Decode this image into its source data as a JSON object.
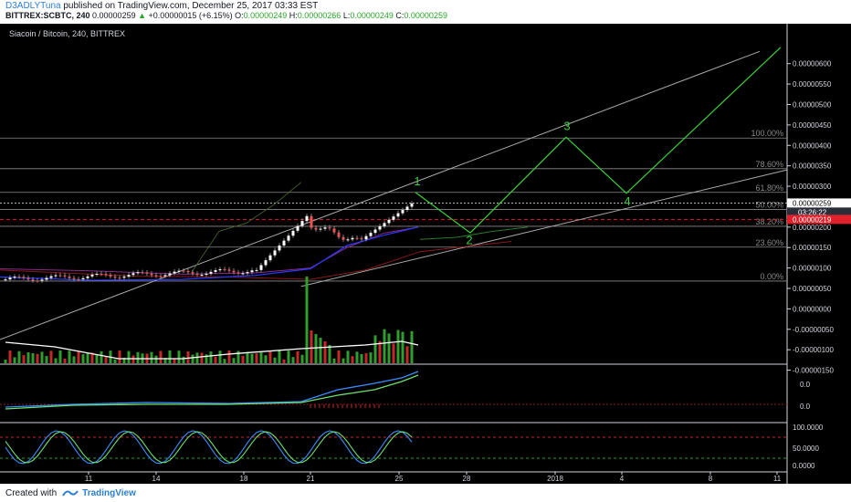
{
  "header": {
    "user": "D3ADLYTuna",
    "published_text": " published on TradingView.com, December 25, 2017 03:33 EST",
    "symbol_line": "BITTREX:SCBTC, 240",
    "last": "0.00000259",
    "change": "+0.00000015 (+6.15%)",
    "o_label": "O:",
    "o_val": "0.00000249",
    "h_label": "H:",
    "h_val": "0.00000266",
    "l_label": "L:",
    "l_val": "0.00000249",
    "c_label": "C:",
    "c_val": "0.00000259"
  },
  "footer": {
    "created_with": "Created with",
    "brand": "TradingView"
  },
  "chart_data": {
    "type": "line",
    "title": "Siacoin / Bitcoin, 240, BITTREX",
    "price_ticks": [
      "0.00000600",
      "0.00000550",
      "0.00000500",
      "0.00000450",
      "0.00000400",
      "0.00000350",
      "0.00000300",
      "0.00000250",
      "0.00000200",
      "0.00000150",
      "0.00000100",
      "0.00000050",
      "0.00000000",
      "-0.00000050",
      "-0.00000100",
      "-0.00000150"
    ],
    "price_tick_values": [
      600,
      550,
      500,
      450,
      400,
      350,
      300,
      250,
      200,
      150,
      100,
      50,
      0,
      -50,
      -100,
      -150
    ],
    "price_range_e8": [
      -175,
      640
    ],
    "last_price_label": "0.00000259",
    "countdown_label": "03:26:22",
    "red_level_label": "0.00000219",
    "last_price_value": 259,
    "red_level_value": 219,
    "fib_levels": [
      {
        "label": "100.00%",
        "value": 418
      },
      {
        "label": "78.60%",
        "value": 343
      },
      {
        "label": "61.80%",
        "value": 285
      },
      {
        "label": "50.00%",
        "value": 243
      },
      {
        "label": "38.20%",
        "value": 202
      },
      {
        "label": "23.60%",
        "value": 151
      },
      {
        "label": "0.00%",
        "value": 68
      }
    ],
    "x_tick_labels": [
      "11",
      "14",
      "18",
      "21",
      "25",
      "28",
      "2018",
      "4",
      "8",
      "11"
    ],
    "wave_labels": [
      {
        "label": "1",
        "value": 285
      },
      {
        "label": "2",
        "value": 190
      },
      {
        "label": "3",
        "value": 420
      },
      {
        "label": "4",
        "value": 285
      }
    ],
    "macd_ticks": [
      "0.0",
      "0.0"
    ],
    "stoch_ticks": [
      "100.0000",
      "50.0000",
      "0.0000"
    ],
    "colors": {
      "up": "#26a69a",
      "down": "#ef5350",
      "wave": "#3ad13a",
      "fib": "#8a8a8a",
      "red_level": "#e0202b"
    }
  }
}
